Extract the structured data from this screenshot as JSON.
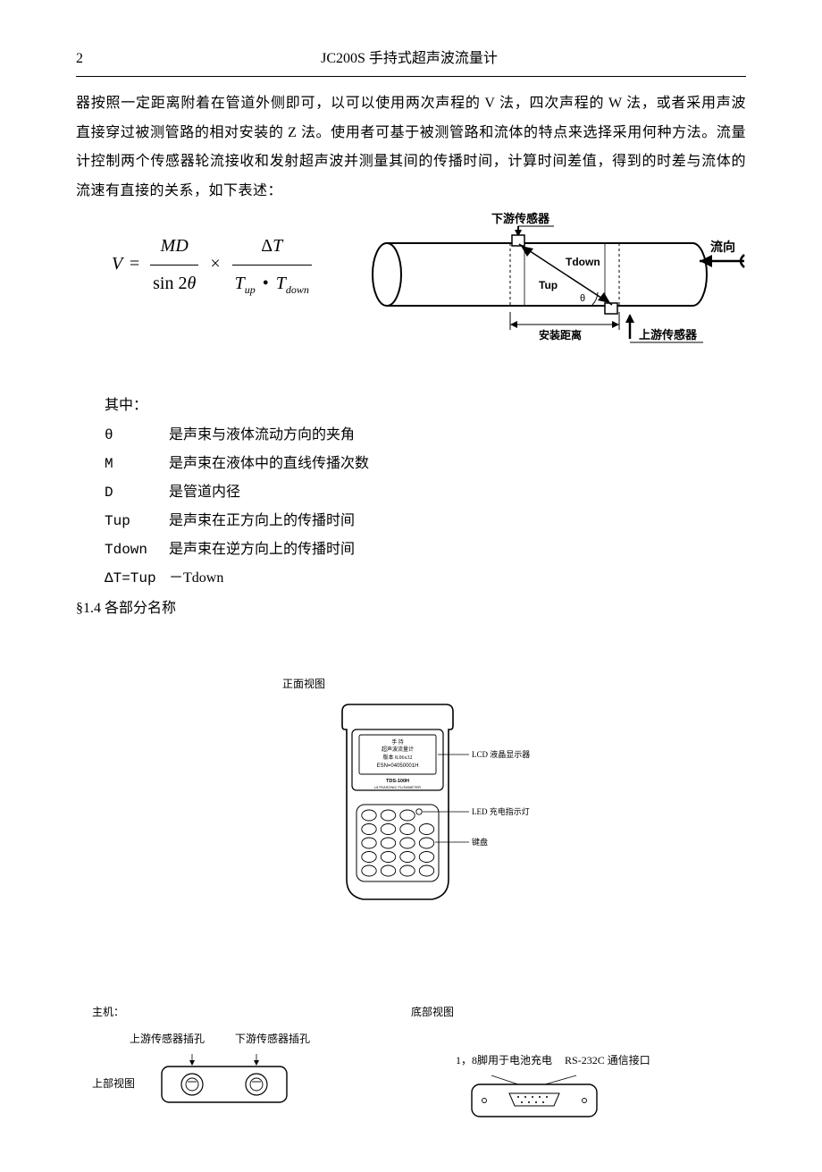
{
  "header": {
    "page_num": "2",
    "title": "JC200S 手持式超声波流量计"
  },
  "paragraph": "器按照一定距离附着在管道外侧即可，以可以使用两次声程的 V 法，四次声程的 W 法，或者采用声波直接穿过被测管路的相对安装的 Z 法。使用者可基于被测管路和流体的特点来选择采用何种方法。流量计控制两个传感器轮流接收和发射超声波并测量其间的传播时间，计算时间差值，得到的时差与流体的流速有直接的关系，如下表述：",
  "formula": {
    "V": "V",
    "eq": "=",
    "MD": "MD",
    "sin2t": "sin 2",
    "theta": "θ",
    "times": "×",
    "dT": "Δ",
    "Tup": "T",
    "up": "up",
    "Tdown": "T",
    "down": "down",
    "T": "T"
  },
  "diagram1": {
    "downstream": "下游传感器",
    "flow": "流向",
    "Tdown": "Tdown",
    "Tup": "Tup",
    "theta": "θ",
    "install_dist": "安装距离",
    "upstream": "上游传感器",
    "colors": {
      "stroke": "#000000",
      "fill": "#ffffff",
      "text": "#000000"
    }
  },
  "defs_title": "其中：",
  "defs": [
    {
      "sym": "θ",
      "txt": "是声束与液体流动方向的夹角"
    },
    {
      "sym": "M",
      "txt": "是声束在液体中的直线传播次数"
    },
    {
      "sym": "D",
      "txt": "是管道内径"
    },
    {
      "sym": "Tup",
      "txt": "是声束在正方向上的传播时间"
    },
    {
      "sym": "Tdown",
      "txt": "是声束在逆方向上的传播时间"
    },
    {
      "sym": "ΔT=Tup",
      "txt": "－Tdown"
    }
  ],
  "section": "§1.4 各部分名称",
  "front_view": {
    "caption": "正面视图",
    "screen_lines": [
      "手   持",
      "超声波流量计",
      "版本 8.06x32",
      "ESN=04050001H"
    ],
    "brand": "TDS-100H",
    "brand2": "ULTRASONIC   FLOWMETER",
    "callouts": {
      "lcd": "LCD 液晶显示器",
      "led": "LED 充电指示灯",
      "kb": "键盘"
    }
  },
  "views": {
    "host": "主机：",
    "upstream_jack": "上游传感器插孔",
    "downstream_jack": "下游传感器插孔",
    "top": "上部视图",
    "bottom": "底部视图",
    "pin": "1，8脚用于电池充电",
    "rs232": "RS-232C 通信接口"
  },
  "style": {
    "page_bg": "#ffffff",
    "text_color": "#000000",
    "rule_color": "#000000",
    "body_fontsize": 16,
    "small_fontsize": 12,
    "line_height": 2.05
  }
}
